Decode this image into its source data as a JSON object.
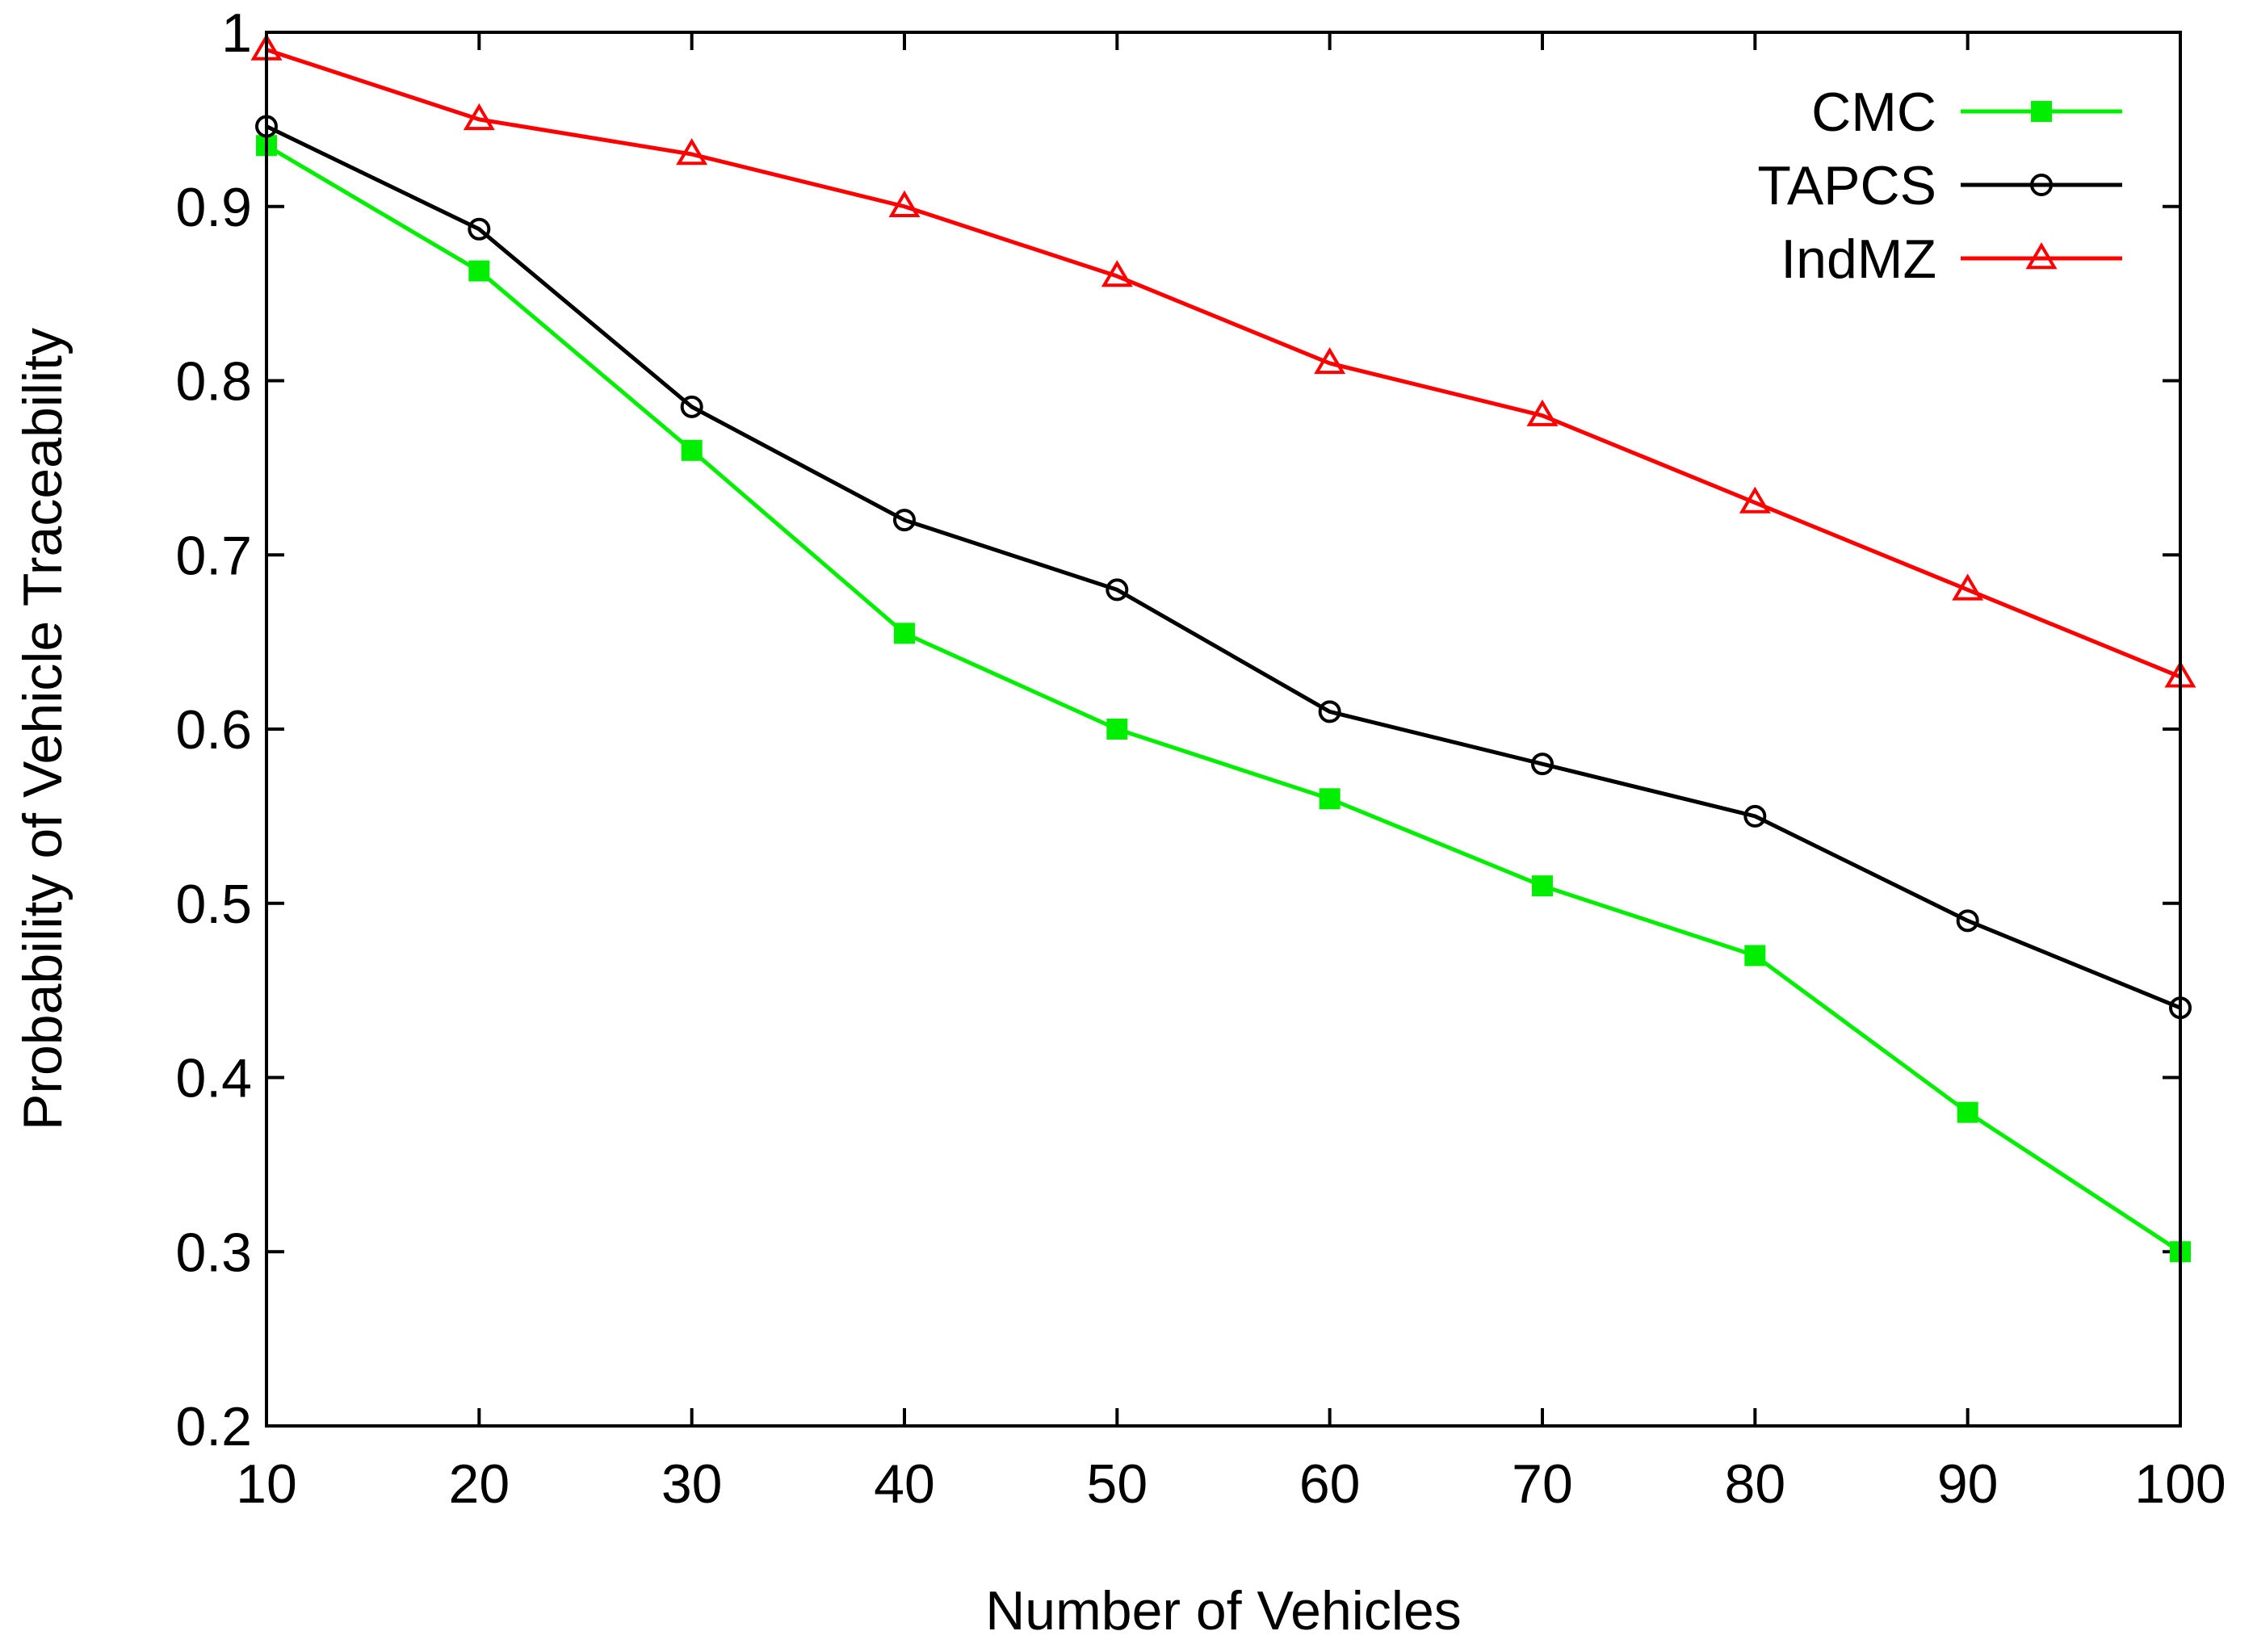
{
  "chart_data": {
    "type": "line",
    "title": "",
    "xlabel": "Number of Vehicles",
    "ylabel": "Probability of Vehicle Traceability",
    "xlim": [
      10,
      100
    ],
    "ylim": [
      0.2,
      1
    ],
    "x_ticks": [
      "10",
      "20",
      "30",
      "40",
      "50",
      "60",
      "70",
      "80",
      "90",
      "100"
    ],
    "y_ticks": [
      "0.2",
      "0.3",
      "0.4",
      "0.5",
      "0.6",
      "0.7",
      "0.8",
      "0.9",
      "1"
    ],
    "x_tick_values": [
      10,
      20,
      30,
      40,
      50,
      60,
      70,
      80,
      90,
      100
    ],
    "y_tick_values": [
      0.2,
      0.3,
      0.4,
      0.5,
      0.6,
      0.7,
      0.8,
      0.9,
      1.0
    ],
    "grid": false,
    "legend_position": "top-right",
    "x": [
      10,
      20,
      30,
      40,
      50,
      60,
      70,
      80,
      90,
      100
    ],
    "series": [
      {
        "name": "CMC",
        "color": "#00ee00",
        "marker": "filled-square",
        "values": [
          0.935,
          0.863,
          0.76,
          0.655,
          0.6,
          0.56,
          0.51,
          0.47,
          0.38,
          0.3
        ]
      },
      {
        "name": "TAPCS",
        "color": "#000000",
        "marker": "open-circle",
        "values": [
          0.946,
          0.887,
          0.785,
          0.72,
          0.68,
          0.61,
          0.58,
          0.55,
          0.49,
          0.44
        ]
      },
      {
        "name": "IndMZ",
        "color": "#ff0000",
        "marker": "open-triangle",
        "values": [
          0.99,
          0.95,
          0.93,
          0.9,
          0.86,
          0.81,
          0.78,
          0.73,
          0.68,
          0.63
        ]
      }
    ]
  }
}
